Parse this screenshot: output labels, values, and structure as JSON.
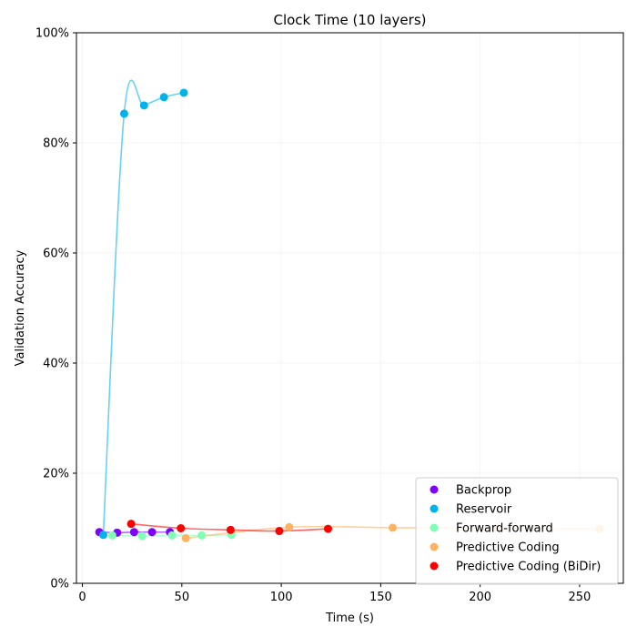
{
  "chart_data": {
    "type": "scatter",
    "title": "Clock Time (10 layers)",
    "xlabel": "Time (s)",
    "ylabel": "Validation Accuracy",
    "xlim": [
      -3,
      272
    ],
    "ylim": [
      0,
      1
    ],
    "xticks": [
      0,
      50,
      100,
      150,
      200,
      250
    ],
    "xtick_labels": [
      "0",
      "50",
      "100",
      "150",
      "200",
      "250"
    ],
    "yticks": [
      0,
      0.2,
      0.4,
      0.6,
      0.8,
      1.0
    ],
    "ytick_labels": [
      "0%",
      "20%",
      "40%",
      "60%",
      "80%",
      "100%"
    ],
    "grid": true,
    "legend_position": "bottom-right",
    "smoothed_lines": true,
    "series": [
      {
        "name": "Backprop",
        "color": "#8000ff",
        "x": [
          8.5,
          17.5,
          26,
          35,
          44
        ],
        "y": [
          0.093,
          0.092,
          0.093,
          0.093,
          0.093
        ]
      },
      {
        "name": "Reservoir",
        "color": "#00b4eb",
        "x": [
          10.5,
          21,
          31,
          41,
          51
        ],
        "y": [
          0.088,
          0.853,
          0.868,
          0.883,
          0.891
        ]
      },
      {
        "name": "Forward-forward",
        "color": "#80ffb4",
        "x": [
          15,
          30,
          45,
          60,
          75
        ],
        "y": [
          0.087,
          0.086,
          0.087,
          0.087,
          0.088
        ]
      },
      {
        "name": "Predictive Coding",
        "color": "#ffb360",
        "x": [
          52,
          104,
          156,
          208,
          260
        ],
        "y": [
          0.082,
          0.102,
          0.101,
          0.1,
          0.099
        ]
      },
      {
        "name": "Predictive Coding (BiDir)",
        "color": "#ff0000",
        "x": [
          24.5,
          49.5,
          74.5,
          99,
          123.5
        ],
        "y": [
          0.108,
          0.1,
          0.097,
          0.095,
          0.099
        ]
      }
    ]
  }
}
